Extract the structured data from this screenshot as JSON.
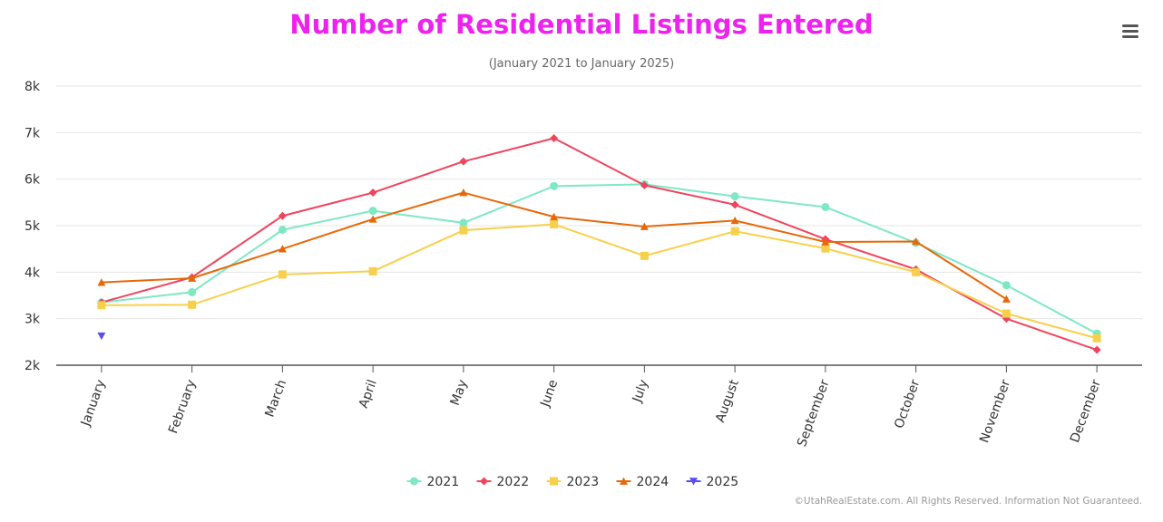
{
  "menu": {
    "icon": "hamburger-menu-icon"
  },
  "footer": {
    "credit": "©UtahRealEstate.com. All Rights Reserved. Information Not Guaranteed."
  },
  "colors": {
    "title": "#ee22ee",
    "axis_line": "#555555",
    "grid": "#e6e6e6",
    "tick_text": "#333333"
  },
  "chart_data": {
    "type": "line",
    "title": "Number of Residential Listings Entered",
    "subtitle": "(January 2021 to January 2025)",
    "xlabel": "",
    "ylabel": "",
    "categories": [
      "January",
      "February",
      "March",
      "April",
      "May",
      "June",
      "July",
      "August",
      "September",
      "October",
      "November",
      "December"
    ],
    "ylim": [
      2000,
      8000
    ],
    "yticks": [
      2000,
      3000,
      4000,
      5000,
      6000,
      7000,
      8000
    ],
    "ytick_labels": [
      "2k",
      "3k",
      "4k",
      "5k",
      "6k",
      "7k",
      "8k"
    ],
    "grid": true,
    "legend": "bottom-center",
    "series": [
      {
        "name": "2021",
        "color": "#7de8c3",
        "marker": "circle",
        "values": [
          3350,
          3570,
          4910,
          5320,
          5060,
          5850,
          5890,
          5630,
          5400,
          4630,
          3720,
          2680
        ]
      },
      {
        "name": "2022",
        "color": "#f0445e",
        "marker": "diamond",
        "values": [
          3350,
          3890,
          5210,
          5710,
          6380,
          6880,
          5870,
          5450,
          4710,
          4060,
          3000,
          2330
        ]
      },
      {
        "name": "2023",
        "color": "#f7d04b",
        "marker": "square",
        "values": [
          3290,
          3300,
          3950,
          4020,
          4900,
          5030,
          4350,
          4880,
          4510,
          4000,
          3110,
          2580
        ]
      },
      {
        "name": "2024",
        "color": "#e6680a",
        "marker": "triangle",
        "values": [
          3780,
          3870,
          4500,
          5140,
          5710,
          5190,
          4980,
          5110,
          4650,
          4660,
          3420,
          null
        ]
      },
      {
        "name": "2025",
        "color": "#5a4ef0",
        "marker": "triangle-down",
        "values": [
          2630,
          null,
          null,
          null,
          null,
          null,
          null,
          null,
          null,
          null,
          null,
          null
        ]
      }
    ]
  }
}
